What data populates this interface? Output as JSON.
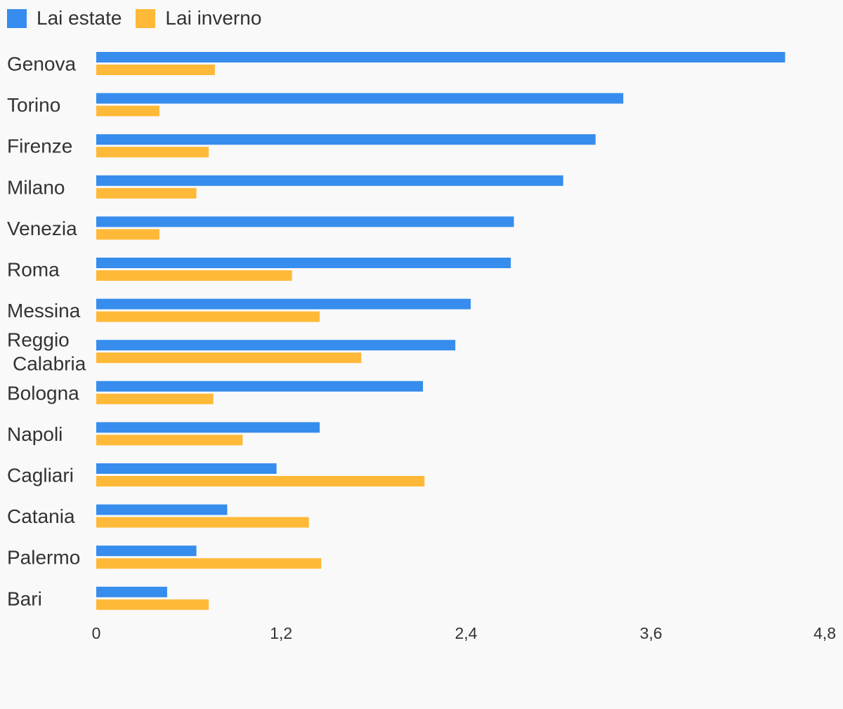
{
  "chart_data": {
    "type": "bar",
    "orientation": "horizontal",
    "categories": [
      "Genova",
      "Torino",
      "Firenze",
      "Milano",
      "Venezia",
      "Roma",
      "Messina",
      "Reggio Calabria",
      "Bologna",
      "Napoli",
      "Cagliari",
      "Catania",
      "Palermo",
      "Bari"
    ],
    "series": [
      {
        "name": "Lai estate",
        "color": "#368ded",
        "values": [
          4.47,
          3.42,
          3.24,
          3.03,
          2.71,
          2.69,
          2.43,
          2.33,
          2.12,
          1.45,
          1.17,
          0.85,
          0.65,
          0.46
        ]
      },
      {
        "name": "Lai inverno",
        "color": "#ffb938",
        "values": [
          0.77,
          0.41,
          0.73,
          0.65,
          0.41,
          1.27,
          1.45,
          1.72,
          0.76,
          0.95,
          2.13,
          1.38,
          1.46,
          0.73
        ]
      }
    ],
    "xlim": [
      0,
      4.8
    ],
    "xticks": [
      "0",
      "1,2",
      "2,4",
      "3,6",
      "4,8"
    ],
    "grid": false,
    "legend_position": "top-left",
    "title": "",
    "xlabel": "",
    "ylabel": ""
  }
}
